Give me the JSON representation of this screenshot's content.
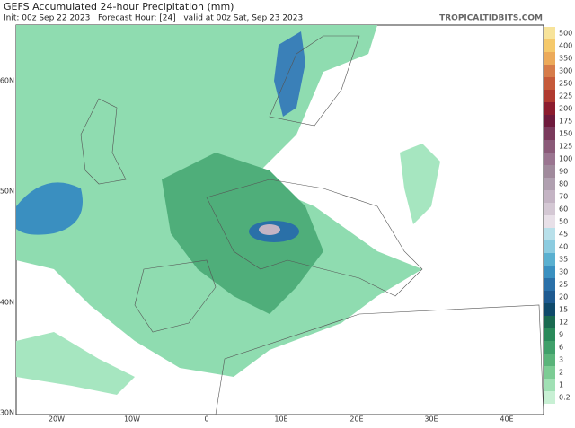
{
  "header": {
    "title": "GEFS Accumulated 24-hour Precipitation (mm)",
    "subtitle": "Init: 00z Sep 22 2023   Forecast Hour: [24]   valid at 00z Sat, Sep 23 2023",
    "source": "TROPICALTIDBITS.COM"
  },
  "map": {
    "lat_labels": [
      "60N",
      "50N",
      "40N",
      "30N"
    ],
    "lon_labels": [
      "20W",
      "10W",
      "0",
      "10E",
      "20E",
      "30E",
      "40E"
    ]
  },
  "colorbar": {
    "levels": [
      500,
      400,
      350,
      300,
      250,
      225,
      200,
      175,
      150,
      125,
      100,
      90,
      80,
      70,
      60,
      50,
      45,
      40,
      35,
      30,
      25,
      20,
      15,
      12,
      9,
      6,
      3,
      2,
      1,
      0.2
    ],
    "colors": [
      "#f7e39a",
      "#f5c96b",
      "#ecaa5a",
      "#d67c4a",
      "#c55a3a",
      "#b03a30",
      "#8c1c2e",
      "#6e1a3c",
      "#7a3a5c",
      "#8a5a78",
      "#9a7590",
      "#a08a9c",
      "#b0a0b0",
      "#c4b4c4",
      "#d4c8d4",
      "#e8e0e8",
      "#b8e0ea",
      "#8ccce0",
      "#5ab0d0",
      "#3a90c0",
      "#2a70a8",
      "#1e5a90",
      "#0f4a6a",
      "#1a6a50",
      "#2a8a5a",
      "#40a06a",
      "#5ab47a",
      "#7ccc94",
      "#a0e0b4",
      "#c8f0d4"
    ]
  }
}
